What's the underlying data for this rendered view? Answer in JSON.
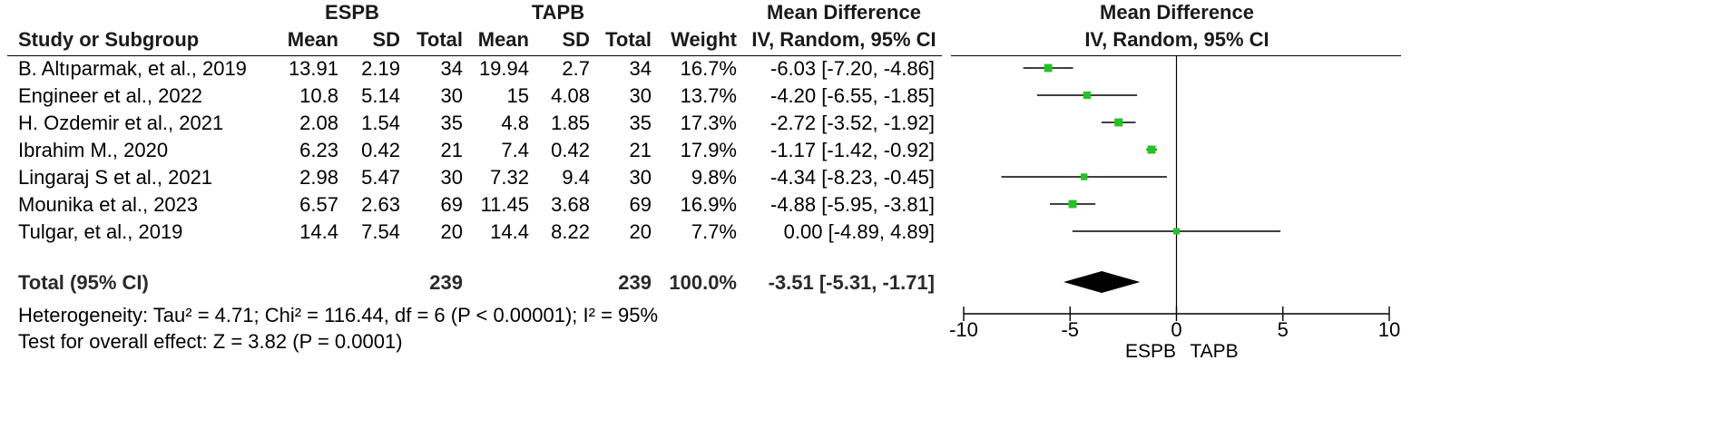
{
  "header": {
    "group1": "ESPB",
    "group2": "TAPB",
    "md_title": "Mean Difference",
    "plot_title": "Mean Difference",
    "col_study": "Study or Subgroup",
    "col_mean1": "Mean",
    "col_sd1": "SD",
    "col_total1": "Total",
    "col_mean2": "Mean",
    "col_sd2": "SD",
    "col_total2": "Total",
    "col_weight": "Weight",
    "col_method": "IV, Random, 95% CI",
    "plot_method": "IV, Random, 95% CI"
  },
  "studies": [
    {
      "name": "B. Altıparmak, et al., 2019",
      "mean1": "13.91",
      "sd1": "2.19",
      "n1": "34",
      "mean2": "19.94",
      "sd2": "2.7",
      "n2": "34",
      "weight": "16.7%",
      "ci": "-6.03 [-7.20, -4.86]"
    },
    {
      "name": "Engineer et al., 2022",
      "mean1": "10.8",
      "sd1": "5.14",
      "n1": "30",
      "mean2": "15",
      "sd2": "4.08",
      "n2": "30",
      "weight": "13.7%",
      "ci": "-4.20 [-6.55, -1.85]"
    },
    {
      "name": "H. Ozdemir et al., 2021",
      "mean1": "2.08",
      "sd1": "1.54",
      "n1": "35",
      "mean2": "4.8",
      "sd2": "1.85",
      "n2": "35",
      "weight": "17.3%",
      "ci": "-2.72 [-3.52, -1.92]"
    },
    {
      "name": "Ibrahim M., 2020",
      "mean1": "6.23",
      "sd1": "0.42",
      "n1": "21",
      "mean2": "7.4",
      "sd2": "0.42",
      "n2": "21",
      "weight": "17.9%",
      "ci": "-1.17 [-1.42, -0.92]"
    },
    {
      "name": "Lingaraj S et al., 2021",
      "mean1": "2.98",
      "sd1": "5.47",
      "n1": "30",
      "mean2": "7.32",
      "sd2": "9.4",
      "n2": "30",
      "weight": "9.8%",
      "ci": "-4.34 [-8.23, -0.45]"
    },
    {
      "name": "Mounika et al., 2023",
      "mean1": "6.57",
      "sd1": "2.63",
      "n1": "69",
      "mean2": "11.45",
      "sd2": "3.68",
      "n2": "69",
      "weight": "16.9%",
      "ci": "-4.88 [-5.95, -3.81]"
    },
    {
      "name": "Tulgar, et al., 2019",
      "mean1": "14.4",
      "sd1": "7.54",
      "n1": "20",
      "mean2": "14.4",
      "sd2": "8.22",
      "n2": "20",
      "weight": "7.7%",
      "ci": "0.00 [-4.89, 4.89]"
    }
  ],
  "total": {
    "label": "Total (95% CI)",
    "n1": "239",
    "n2": "239",
    "weight": "100.0%",
    "ci": "-3.51 [-5.31, -1.71]"
  },
  "heterogeneity": "Heterogeneity: Tau² = 4.71; Chi² = 116.44, df = 6 (P < 0.00001); I² = 95%",
  "overall_effect": "Test for overall effect: Z = 3.82 (P = 0.0001)",
  "colors": {
    "square": "#22c422",
    "diamond": "#000000",
    "line": "#000000"
  },
  "chart_data": {
    "type": "scatter",
    "subtype": "forest-plot",
    "title": "Mean Difference",
    "subtitle": "IV, Random, 95% CI",
    "xlim": [
      -10,
      10
    ],
    "xticks": [
      -10,
      -5,
      0,
      5,
      10
    ],
    "xtick_labels": [
      "-10",
      "-5",
      "0",
      "5",
      "10"
    ],
    "favours_left": "ESPB",
    "favours_right": "TAPB",
    "series": [
      {
        "md": [
          -6.03,
          -4.2,
          -2.72,
          -1.17,
          -4.34,
          -4.88,
          0.0
        ],
        "lower": [
          -7.2,
          -6.55,
          -3.52,
          -1.42,
          -8.23,
          -5.95,
          -4.89
        ],
        "upper": [
          -4.86,
          -1.85,
          -1.92,
          -0.92,
          -0.45,
          -3.81,
          4.89
        ],
        "weight": [
          16.7,
          13.7,
          17.3,
          17.9,
          9.8,
          16.9,
          7.7
        ]
      }
    ],
    "pooled": {
      "md": -3.51,
      "lower": -5.31,
      "upper": -1.71
    }
  }
}
